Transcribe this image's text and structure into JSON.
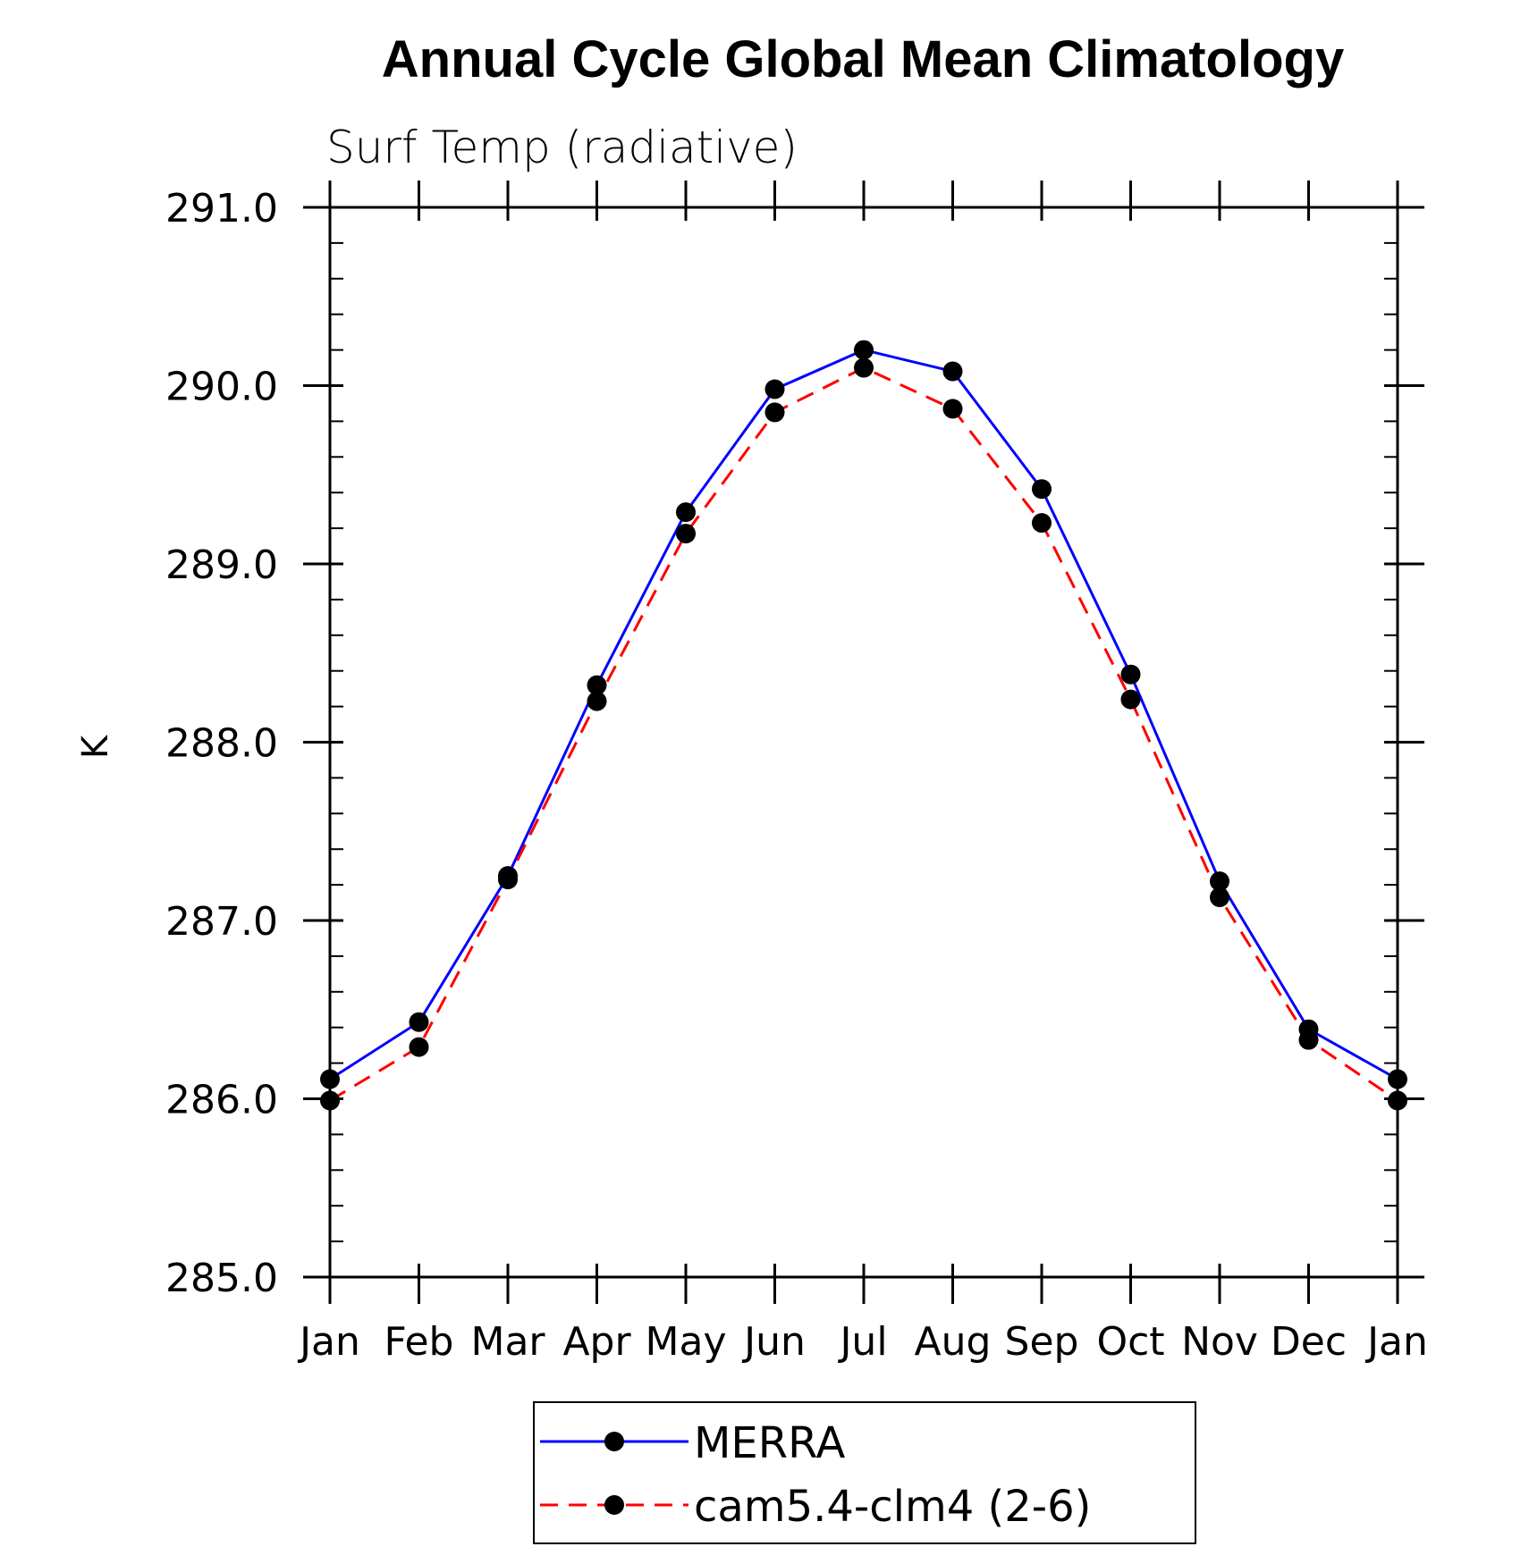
{
  "chart_data": {
    "type": "line",
    "title": "Annual Cycle Global Mean Climatology",
    "subtitle": "Surf Temp (radiative)",
    "ylabel": "K",
    "xlabel": "",
    "categories": [
      "Jan",
      "Feb",
      "Mar",
      "Apr",
      "May",
      "Jun",
      "Jul",
      "Aug",
      "Sep",
      "Oct",
      "Nov",
      "Dec",
      "Jan"
    ],
    "ylim": [
      285.0,
      291.0
    ],
    "yticks": [
      "285.0",
      "286.0",
      "287.0",
      "288.0",
      "289.0",
      "290.0",
      "291.0"
    ],
    "series": [
      {
        "name": "MERRA",
        "color": "#0000ff",
        "dash": "solid",
        "marker": "filled-circle",
        "values": [
          286.11,
          286.43,
          287.25,
          288.32,
          289.29,
          289.98,
          290.2,
          290.08,
          289.42,
          288.38,
          287.22,
          286.39,
          286.11
        ]
      },
      {
        "name": "cam5.4-clm4 (2-6)",
        "color": "#ff0000",
        "dash": "dashed",
        "marker": "filled-circle",
        "values": [
          285.99,
          286.29,
          287.23,
          288.23,
          289.17,
          289.85,
          290.1,
          289.87,
          289.23,
          288.24,
          287.13,
          286.33,
          285.99
        ]
      }
    ],
    "legend_position": "bottom-center",
    "grid": false
  }
}
